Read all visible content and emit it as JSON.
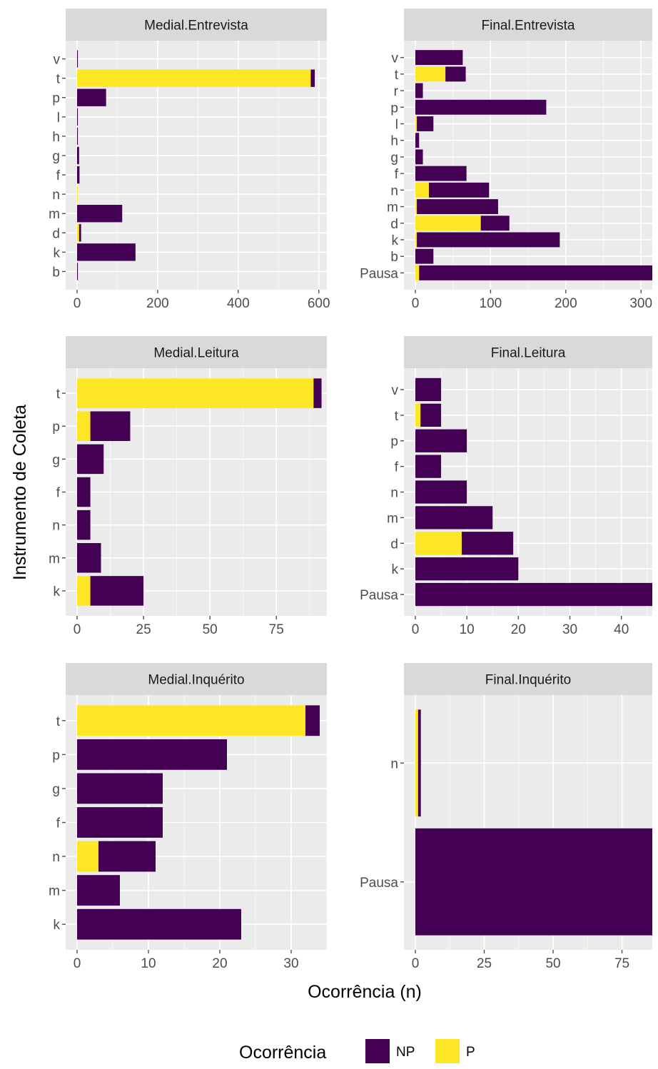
{
  "colors": {
    "NP": "#440154",
    "P": "#FDE725",
    "panel_bg": "#EBEBEB",
    "strip_bg": "#D9D9D9",
    "grid_major": "#FFFFFF",
    "tick": "#4D4D4D"
  },
  "chart_data": {
    "type": "bar",
    "orientation": "horizontal",
    "stacked": true,
    "facets": "wrap",
    "xlabel": "Ocorrência (n)",
    "ylabel": "Instrumento de Coleta",
    "legend": {
      "title": "Ocorrência",
      "position": "bottom",
      "entries": [
        "NP",
        "P"
      ]
    },
    "panels": [
      {
        "strip": "Medial.Entrevista",
        "xlim": [
          0,
          620
        ],
        "x_ticks": [
          0,
          200,
          400,
          600
        ],
        "categories": [
          "b",
          "k",
          "d",
          "m",
          "n",
          "f",
          "g",
          "h",
          "l",
          "p",
          "t",
          "v"
        ],
        "series": [
          {
            "name": "P",
            "values": [
              0,
              0,
              5,
              0,
              1,
              0,
              0,
              0,
              0,
              0,
              580,
              0
            ]
          },
          {
            "name": "NP",
            "values": [
              2,
              145,
              5,
              112,
              0,
              6,
              5,
              2,
              2,
              72,
              10,
              2
            ]
          }
        ]
      },
      {
        "strip": "Final.Entrevista",
        "xlim": [
          0,
          315
        ],
        "x_ticks": [
          0,
          100,
          200,
          300
        ],
        "categories": [
          "Pausa",
          "b",
          "k",
          "d",
          "m",
          "n",
          "f",
          "g",
          "h",
          "l",
          "p",
          "r",
          "t",
          "v"
        ],
        "series": [
          {
            "name": "P",
            "values": [
              5,
              0,
              2,
              87,
              2,
              18,
              0,
              0,
              0,
              2,
              0,
              0,
              40,
              0
            ]
          },
          {
            "name": "NP",
            "values": [
              310,
              24,
              190,
              38,
              108,
              80,
              68,
              10,
              5,
              22,
              174,
              10,
              27,
              63
            ]
          }
        ]
      },
      {
        "strip": "Medial.Leitura",
        "xlim": [
          0,
          94
        ],
        "x_ticks": [
          0,
          25,
          50,
          75
        ],
        "categories": [
          "k",
          "m",
          "n",
          "f",
          "g",
          "p",
          "t"
        ],
        "series": [
          {
            "name": "P",
            "values": [
              5,
              0,
              0,
              0,
              0,
              5,
              89
            ]
          },
          {
            "name": "NP",
            "values": [
              20,
              9,
              5,
              5,
              10,
              15,
              3
            ]
          }
        ]
      },
      {
        "strip": "Final.Leitura",
        "xlim": [
          0,
          46
        ],
        "x_ticks": [
          0,
          10,
          20,
          30,
          40
        ],
        "categories": [
          "Pausa",
          "k",
          "d",
          "m",
          "n",
          "f",
          "p",
          "t",
          "v"
        ],
        "series": [
          {
            "name": "P",
            "values": [
              0,
              0,
              9,
              0,
              0,
              0,
              0,
              1,
              0
            ]
          },
          {
            "name": "NP",
            "values": [
              46,
              20,
              10,
              15,
              10,
              5,
              10,
              4,
              5
            ]
          }
        ]
      },
      {
        "strip": "Medial.Inquérito",
        "xlim": [
          0,
          35
        ],
        "x_ticks": [
          0,
          10,
          20,
          30
        ],
        "categories": [
          "k",
          "m",
          "n",
          "f",
          "g",
          "p",
          "t"
        ],
        "series": [
          {
            "name": "P",
            "values": [
              0,
              0,
              3,
              0,
              0,
              0,
              32
            ]
          },
          {
            "name": "NP",
            "values": [
              23,
              6,
              8,
              12,
              12,
              21,
              2
            ]
          }
        ]
      },
      {
        "strip": "Final.Inquérito",
        "xlim": [
          0,
          86
        ],
        "x_ticks": [
          0,
          25,
          50,
          75
        ],
        "categories": [
          "Pausa",
          "n"
        ],
        "series": [
          {
            "name": "P",
            "values": [
              0,
              1
            ]
          },
          {
            "name": "NP",
            "values": [
              86,
              1
            ]
          }
        ]
      }
    ]
  }
}
